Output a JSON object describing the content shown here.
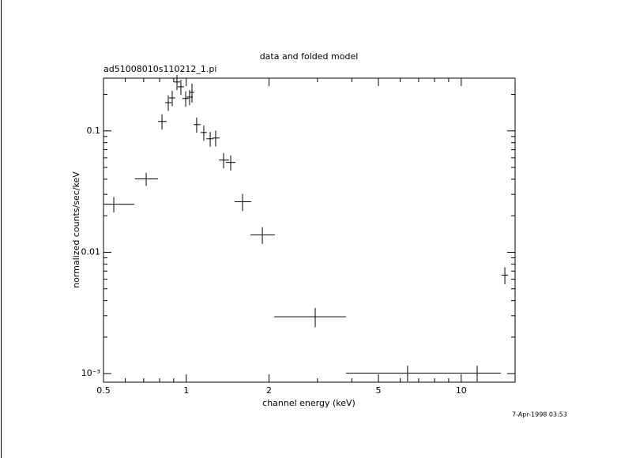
{
  "chart_data": {
    "type": "errorbar",
    "title": "data and folded model",
    "subtitle": "ad51008010s110212_1.pi",
    "x_label": "channel energy (keV)",
    "y_label": "normalized counts/sec/keV",
    "timestamp": "7-Apr-1998 03:53",
    "x_log": true,
    "y_log": true,
    "color": "#000000",
    "xlim": [
      0.5,
      15.7
    ],
    "ylim": [
      0.00085,
      0.272
    ],
    "xticks": [
      0.5,
      1,
      2,
      5,
      10
    ],
    "x_minor_ticks": [
      0.6,
      0.7,
      0.8,
      0.9,
      3,
      4,
      6,
      7,
      8,
      9
    ],
    "yticks": [
      0.1,
      0.01,
      {
        "value": 0.001,
        "label": "10⁻³"
      }
    ],
    "y_minor_ticks": [
      0.002,
      0.003,
      0.004,
      0.005,
      0.006,
      0.007,
      0.008,
      0.009,
      0.02,
      0.03,
      0.04,
      0.05,
      0.06,
      0.07,
      0.08,
      0.09,
      0.2
    ],
    "x": [
      0.545,
      0.715,
      0.816,
      0.86,
      0.889,
      0.925,
      0.956,
      0.995,
      1.028,
      1.049,
      1.091,
      1.158,
      1.222,
      1.279,
      1.367,
      1.451,
      1.602,
      1.891,
      2.944,
      6.38,
      11.43,
      14.41
    ],
    "x_low": [
      0.5,
      0.651,
      0.789,
      0.838,
      0.866,
      0.901,
      0.931,
      0.968,
      1.002,
      1.028,
      1.064,
      1.127,
      1.182,
      1.247,
      1.315,
      1.394,
      1.499,
      1.71,
      2.089,
      3.81,
      10.69,
      14.03
    ],
    "x_high": [
      0.647,
      0.789,
      0.849,
      0.883,
      0.912,
      0.95,
      0.981,
      1.021,
      1.056,
      1.069,
      1.127,
      1.189,
      1.254,
      1.322,
      1.432,
      1.509,
      1.722,
      2.101,
      3.81,
      10.69,
      13.94,
      14.8
    ],
    "y": [
      0.0249,
      0.0402,
      0.1197,
      0.171,
      0.187,
      0.253,
      0.231,
      0.185,
      0.19,
      0.208,
      0.1127,
      0.097,
      0.0861,
      0.0874,
      0.0575,
      0.055,
      0.0261,
      0.0139,
      0.00294,
      0.00101,
      0.00101,
      0.00648
    ],
    "y_err": [
      0.0036,
      0.005,
      0.017,
      0.025,
      0.027,
      0.036,
      0.033,
      0.027,
      0.027,
      0.037,
      0.016,
      0.014,
      0.012,
      0.013,
      0.0083,
      0.0079,
      0.0042,
      0.0022,
      0.00053,
      0.00015,
      0.00015,
      0.00104
    ]
  }
}
